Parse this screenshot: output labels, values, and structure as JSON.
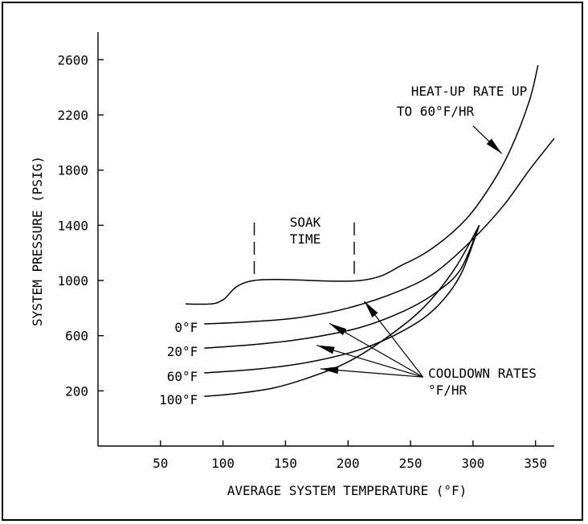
{
  "chart_data": {
    "type": "line",
    "title": "",
    "xlabel": "AVERAGE SYSTEM TEMPERATURE (°F)",
    "ylabel": "SYSTEM PRESSURE (PSIG)",
    "xlim": [
      0,
      365
    ],
    "ylim": [
      -200,
      2800
    ],
    "x_ticks": [
      50,
      100,
      150,
      200,
      250,
      300,
      350
    ],
    "y_ticks": [
      200,
      600,
      1000,
      1400,
      1800,
      2200,
      2600
    ],
    "grid": false,
    "series": [
      {
        "points": [
          [
            70,
            830
          ],
          [
            90,
            830
          ],
          [
            100,
            860
          ],
          [
            125,
            1000
          ],
          [
            210,
            1000
          ],
          [
            245,
            1120
          ],
          [
            270,
            1250
          ],
          [
            295,
            1450
          ],
          [
            315,
            1700
          ],
          [
            330,
            1950
          ],
          [
            345,
            2300
          ],
          [
            352,
            2560
          ]
        ]
      },
      {
        "name": "0°F",
        "points": [
          [
            85,
            685
          ],
          [
            120,
            700
          ],
          [
            160,
            730
          ],
          [
            200,
            800
          ],
          [
            240,
            920
          ],
          [
            270,
            1060
          ],
          [
            300,
            1300
          ],
          [
            325,
            1550
          ],
          [
            345,
            1800
          ],
          [
            365,
            2030
          ]
        ]
      },
      {
        "name": "20°F",
        "points": [
          [
            85,
            510
          ],
          [
            130,
            540
          ],
          [
            170,
            585
          ],
          [
            210,
            660
          ],
          [
            245,
            780
          ],
          [
            270,
            910
          ],
          [
            290,
            1080
          ],
          [
            305,
            1400
          ]
        ]
      },
      {
        "name": "60°F",
        "points": [
          [
            85,
            330
          ],
          [
            130,
            360
          ],
          [
            170,
            410
          ],
          [
            210,
            500
          ],
          [
            245,
            640
          ],
          [
            270,
            800
          ],
          [
            290,
            1040
          ],
          [
            305,
            1400
          ]
        ]
      },
      {
        "name": "100°F",
        "points": [
          [
            85,
            160
          ],
          [
            110,
            180
          ],
          [
            140,
            220
          ],
          [
            170,
            300
          ],
          [
            200,
            410
          ],
          [
            230,
            580
          ],
          [
            260,
            800
          ],
          [
            285,
            1080
          ],
          [
            305,
            1400
          ]
        ]
      }
    ],
    "annotations": {
      "heatup_line1": "HEAT-UP RATE UP",
      "heatup_line2": "TO 60°F/HR",
      "soak_line1": "SOAK",
      "soak_line2": "TIME",
      "cooldown_line1": "COOLDOWN RATES",
      "cooldown_line2": "°F/HR"
    },
    "soak_markers_x": [
      125,
      205
    ],
    "cooldown_arrow_targets": [
      [
        213,
        850
      ],
      [
        185,
        690
      ],
      [
        175,
        530
      ],
      [
        178,
        360
      ]
    ],
    "cooldown_arrow_origin": [
      260,
      300
    ],
    "heatup_arrow_target": [
      323,
      1920
    ],
    "heatup_arrow_origin": [
      300,
      2120
    ]
  }
}
